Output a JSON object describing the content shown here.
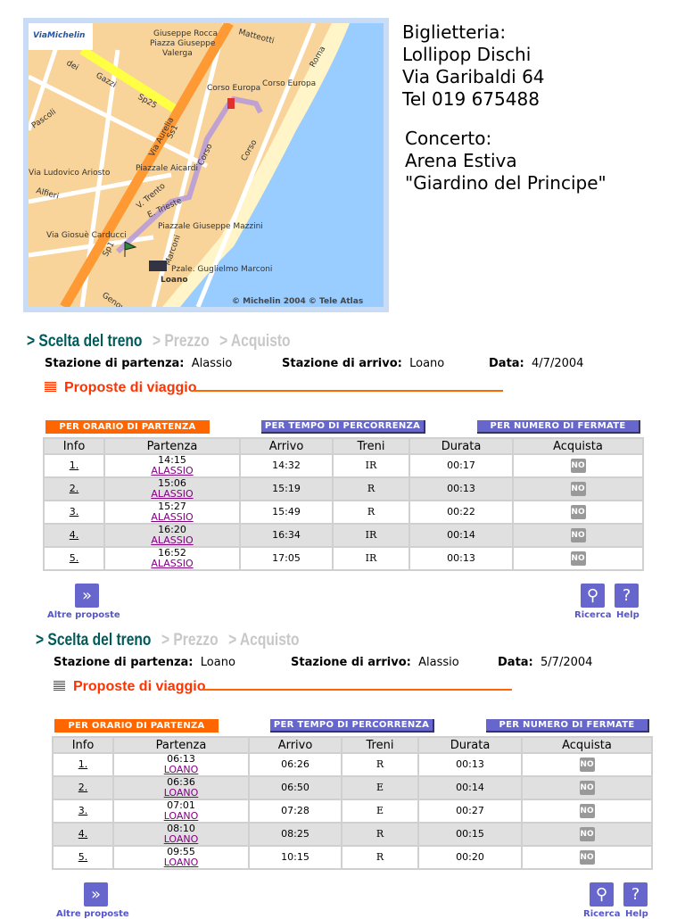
{
  "map": {
    "brand": "ViaMichelin",
    "copyright": "© Michelin 2004 © Tele Atlas",
    "labels": [
      "Giuseppe Rocca",
      "Piazza Giuseppe",
      "Valerga",
      "Matteotti",
      "dei",
      "Gazzi",
      "Sp25",
      "Via Aurelia",
      "Ss1",
      "Corso Europa",
      "Corso Europa",
      "Roma",
      "Corso",
      "Corso",
      "Piazzale Aicardi",
      "Via Ludovico Ariosto",
      "V. Trento",
      "E. Trieste",
      "Piazzale Giuseppe Mazzini",
      "Via Giosuè Carducci",
      "Marconi",
      "Pzale. Guglielmo Marconi",
      "Loano",
      "Pascoli",
      "Alfieri",
      "Sp1",
      "Genova"
    ]
  },
  "info": {
    "lines": [
      "Biglietteria:",
      "Lollipop Dischi",
      "Via Garibaldi 64",
      "Tel 019 675488"
    ],
    "lines2": [
      "Concerto:",
      "Arena Estiva",
      "\"Giardino del Principe\""
    ]
  },
  "steps": {
    "current": "> Scelta del treno",
    "price": "> Prezzo",
    "buy": "> Acquisto"
  },
  "labels": {
    "dep": "Stazione di partenza:",
    "arr": "Stazione di arrivo:",
    "date": "Data:",
    "proposals": "Proposte di viaggio",
    "sort_dep": "PER ORARIO DI PARTENZA",
    "sort_time": "PER TEMPO DI PERCORRENZA",
    "sort_stops": "PER NUMERO DI FERMATE",
    "more": "Altre proposte",
    "search": "Ricerca",
    "help": "Help",
    "no": "NO"
  },
  "columns": [
    "Info",
    "Partenza",
    "Arrivo",
    "Treni",
    "Durata",
    "Acquista"
  ],
  "colors": {
    "accent": "#ff6600",
    "purple": "#6666cc",
    "teal": "#005a5a"
  },
  "sections": [
    {
      "dep": "Alassio",
      "arr": "Loano",
      "date": "4/7/2004",
      "rows": [
        {
          "n": "1.",
          "dep": "14:15",
          "st": "ALASSIO",
          "arr": "14:32",
          "train": "IR",
          "dur": "00:17"
        },
        {
          "n": "2.",
          "dep": "15:06",
          "st": "ALASSIO",
          "arr": "15:19",
          "train": "R",
          "dur": "00:13"
        },
        {
          "n": "3.",
          "dep": "15:27",
          "st": "ALASSIO",
          "arr": "15:49",
          "train": "R",
          "dur": "00:22"
        },
        {
          "n": "4.",
          "dep": "16:20",
          "st": "ALASSIO",
          "arr": "16:34",
          "train": "IR",
          "dur": "00:14"
        },
        {
          "n": "5.",
          "dep": "16:52",
          "st": "ALASSIO",
          "arr": "17:05",
          "train": "IR",
          "dur": "00:13"
        }
      ]
    },
    {
      "dep": "Loano",
      "arr": "Alassio",
      "date": "5/7/2004",
      "rows": [
        {
          "n": "1.",
          "dep": "06:13",
          "st": "LOANO",
          "arr": "06:26",
          "train": "R",
          "dur": "00:13"
        },
        {
          "n": "2.",
          "dep": "06:36",
          "st": "LOANO",
          "arr": "06:50",
          "train": "E",
          "dur": "00:14"
        },
        {
          "n": "3.",
          "dep": "07:01",
          "st": "LOANO",
          "arr": "07:28",
          "train": "E",
          "dur": "00:27"
        },
        {
          "n": "4.",
          "dep": "08:10",
          "st": "LOANO",
          "arr": "08:25",
          "train": "R",
          "dur": "00:15"
        },
        {
          "n": "5.",
          "dep": "09:55",
          "st": "LOANO",
          "arr": "10:15",
          "train": "R",
          "dur": "00:20"
        }
      ]
    }
  ]
}
